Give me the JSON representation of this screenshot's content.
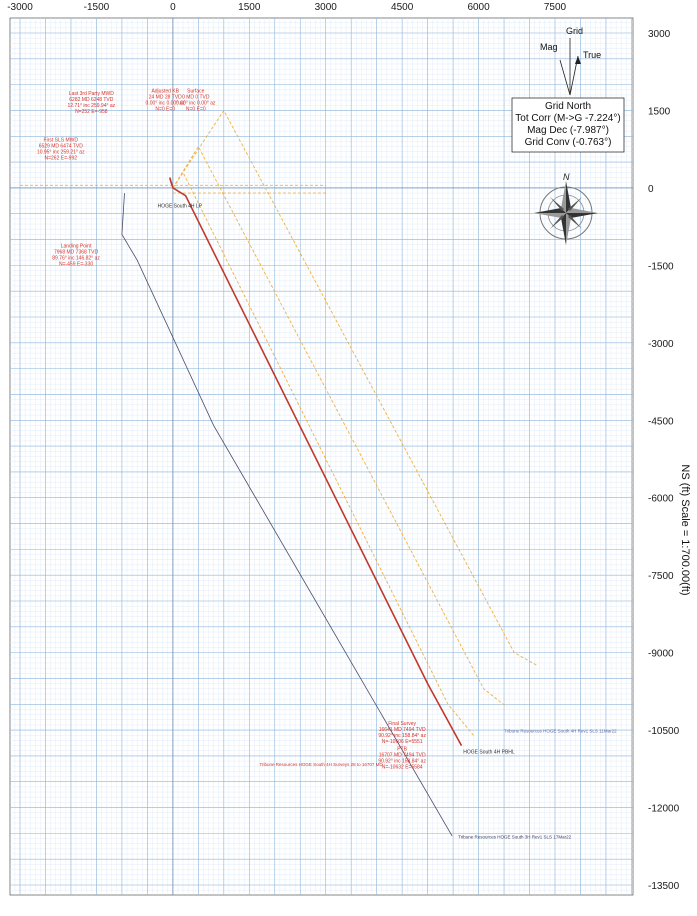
{
  "chart_data": {
    "type": "line",
    "x_ticks": [
      "-3000",
      "-1500",
      "0",
      "1500",
      "3000",
      "4500",
      "6000",
      "7500"
    ],
    "y_ticks": [
      "3000",
      "1500",
      "0",
      "-1500",
      "-3000",
      "-4500",
      "-6000",
      "-7500",
      "-9000",
      "-10500",
      "-12000",
      "-13500"
    ],
    "xlim": [
      -3000,
      7500
    ],
    "ylim": [
      -13500,
      3000
    ],
    "ylabel": "NS (ft) Scale = 1:700.00(ft)",
    "grid": true,
    "series": [
      {
        "name": "Tribune Resources HOGE South 4H Surveys 28 to 16707 MD",
        "color": "#c0392b",
        "x": [
          0,
          -30,
          -60,
          -48,
          0,
          250,
          5000,
          5664
        ],
        "y": [
          0,
          100,
          200,
          150,
          0,
          -150,
          -9600,
          -10800
        ]
      },
      {
        "name": "Tribune Resources HOGE South 4H Rev1 SLS 11Mar22",
        "color": "#6b7d8f",
        "x": [
          0,
          -30,
          -60,
          -48,
          0,
          250,
          5000,
          5664
        ],
        "y": [
          0,
          100,
          200,
          150,
          0,
          -150,
          -9600,
          -10800
        ]
      },
      {
        "name": "Tribune Resources HOGE South 3H Rev1 SLS 17Mar22",
        "color": "#4a4a6a",
        "x": [
          -950,
          -1000,
          -700,
          800,
          5480
        ],
        "y": [
          -100,
          -900,
          -1400,
          -4600,
          -12550
        ]
      },
      {
        "name": "offset-well-1",
        "color": "#f0b040",
        "x": [
          0,
          1000,
          6700,
          7150
        ],
        "y": [
          0,
          1500,
          -9000,
          -9250
        ]
      },
      {
        "name": "offset-well-2",
        "color": "#f0b040",
        "x": [
          0,
          500,
          6100,
          6550
        ],
        "y": [
          0,
          800,
          -9700,
          -10050
        ]
      },
      {
        "name": "offset-well-3",
        "color": "#f0b040",
        "x": [
          0,
          200,
          5400,
          5900
        ],
        "y": [
          0,
          300,
          -10000,
          -10600
        ]
      },
      {
        "name": "lease-line-north",
        "color": "#f0b040",
        "x": [
          -3000,
          3000
        ],
        "y": [
          50,
          50
        ]
      },
      {
        "name": "lease-line-south",
        "color": "#f0b040",
        "x": [
          0,
          3000
        ],
        "y": [
          -100,
          -100
        ]
      }
    ],
    "annotations": [
      {
        "text": [
          "Last 3rd Party MWD",
          "6282 MD 6248 TVD",
          "12.71° inc 259.94° az",
          "N=252 E=-958"
        ],
        "color": "#d8332a",
        "x": -1600,
        "y": 1800
      },
      {
        "text": [
          "Adjusted KB",
          "24 MD 28 TVD",
          "0.00° inc 0.00° az",
          "N=0 E=0"
        ],
        "color": "#d8332a",
        "x": -150,
        "y": 1850
      },
      {
        "text": [
          "Surface",
          "0 MD 0 TVD",
          "0.00° inc 0.00° az",
          "N=0 E=0"
        ],
        "color": "#d8332a",
        "x": 450,
        "y": 1850
      },
      {
        "text": [
          "First SLS MWD",
          "6529 MD 6474 TVD",
          "10.95° inc 259.21° az",
          "N=262 E=-992"
        ],
        "color": "#d8332a",
        "x": -2200,
        "y": 900
      },
      {
        "text": [
          "Landing Point",
          "7968 MD 7368 TVD",
          "89.76° inc 146.82° az",
          "N=-459 E=-330"
        ],
        "color": "#d8332a",
        "x": -1900,
        "y": -1150
      },
      {
        "text": [
          "Final Survey",
          "16641 MD 7494 TVD",
          "90.92° inc 158.84° az",
          "N=-10606 E=5551"
        ],
        "color": "#d8332a",
        "x": 4500,
        "y": -10400
      },
      {
        "text": [
          "PTB",
          "16707 MD 7494 TVD",
          "90.92° inc 158.84° az",
          "N=-10632 E=5584"
        ],
        "color": "#d8332a",
        "x": 4500,
        "y": -10900
      }
    ],
    "well_labels": [
      {
        "text": "HOGE South 4H LP",
        "x": -300,
        "y": -380
      },
      {
        "text": "HOGE South 4H PBHL",
        "x": 5700,
        "y": -10950
      }
    ],
    "legend_entries": [
      {
        "text": "Tribune Resources HOGE South 4H Rev1 SLS 11Mar22",
        "x": 6500,
        "y": -10550,
        "color": "#5a6a9a"
      },
      {
        "text": "Tribune Resources HOGE South 4H Surveys 28 to 16707 MD",
        "x": 1700,
        "y": -11200,
        "color": "#d8332a"
      },
      {
        "text": "Tribune Resources HOGE South 3H Rev1 SLS 17Mar22",
        "x": 5600,
        "y": -12600,
        "color": "#3a3a5a"
      }
    ]
  },
  "north_arrow": {
    "labels": {
      "grid": "Grid",
      "mag": "Mag",
      "true": "True"
    }
  },
  "info_box": {
    "lines": [
      "Grid North",
      "Tot Corr (M->G -7.224°)",
      "Mag Dec (-7.987°)",
      "Grid Conv (-0.763°)"
    ]
  },
  "compass": {
    "letter": "N"
  }
}
